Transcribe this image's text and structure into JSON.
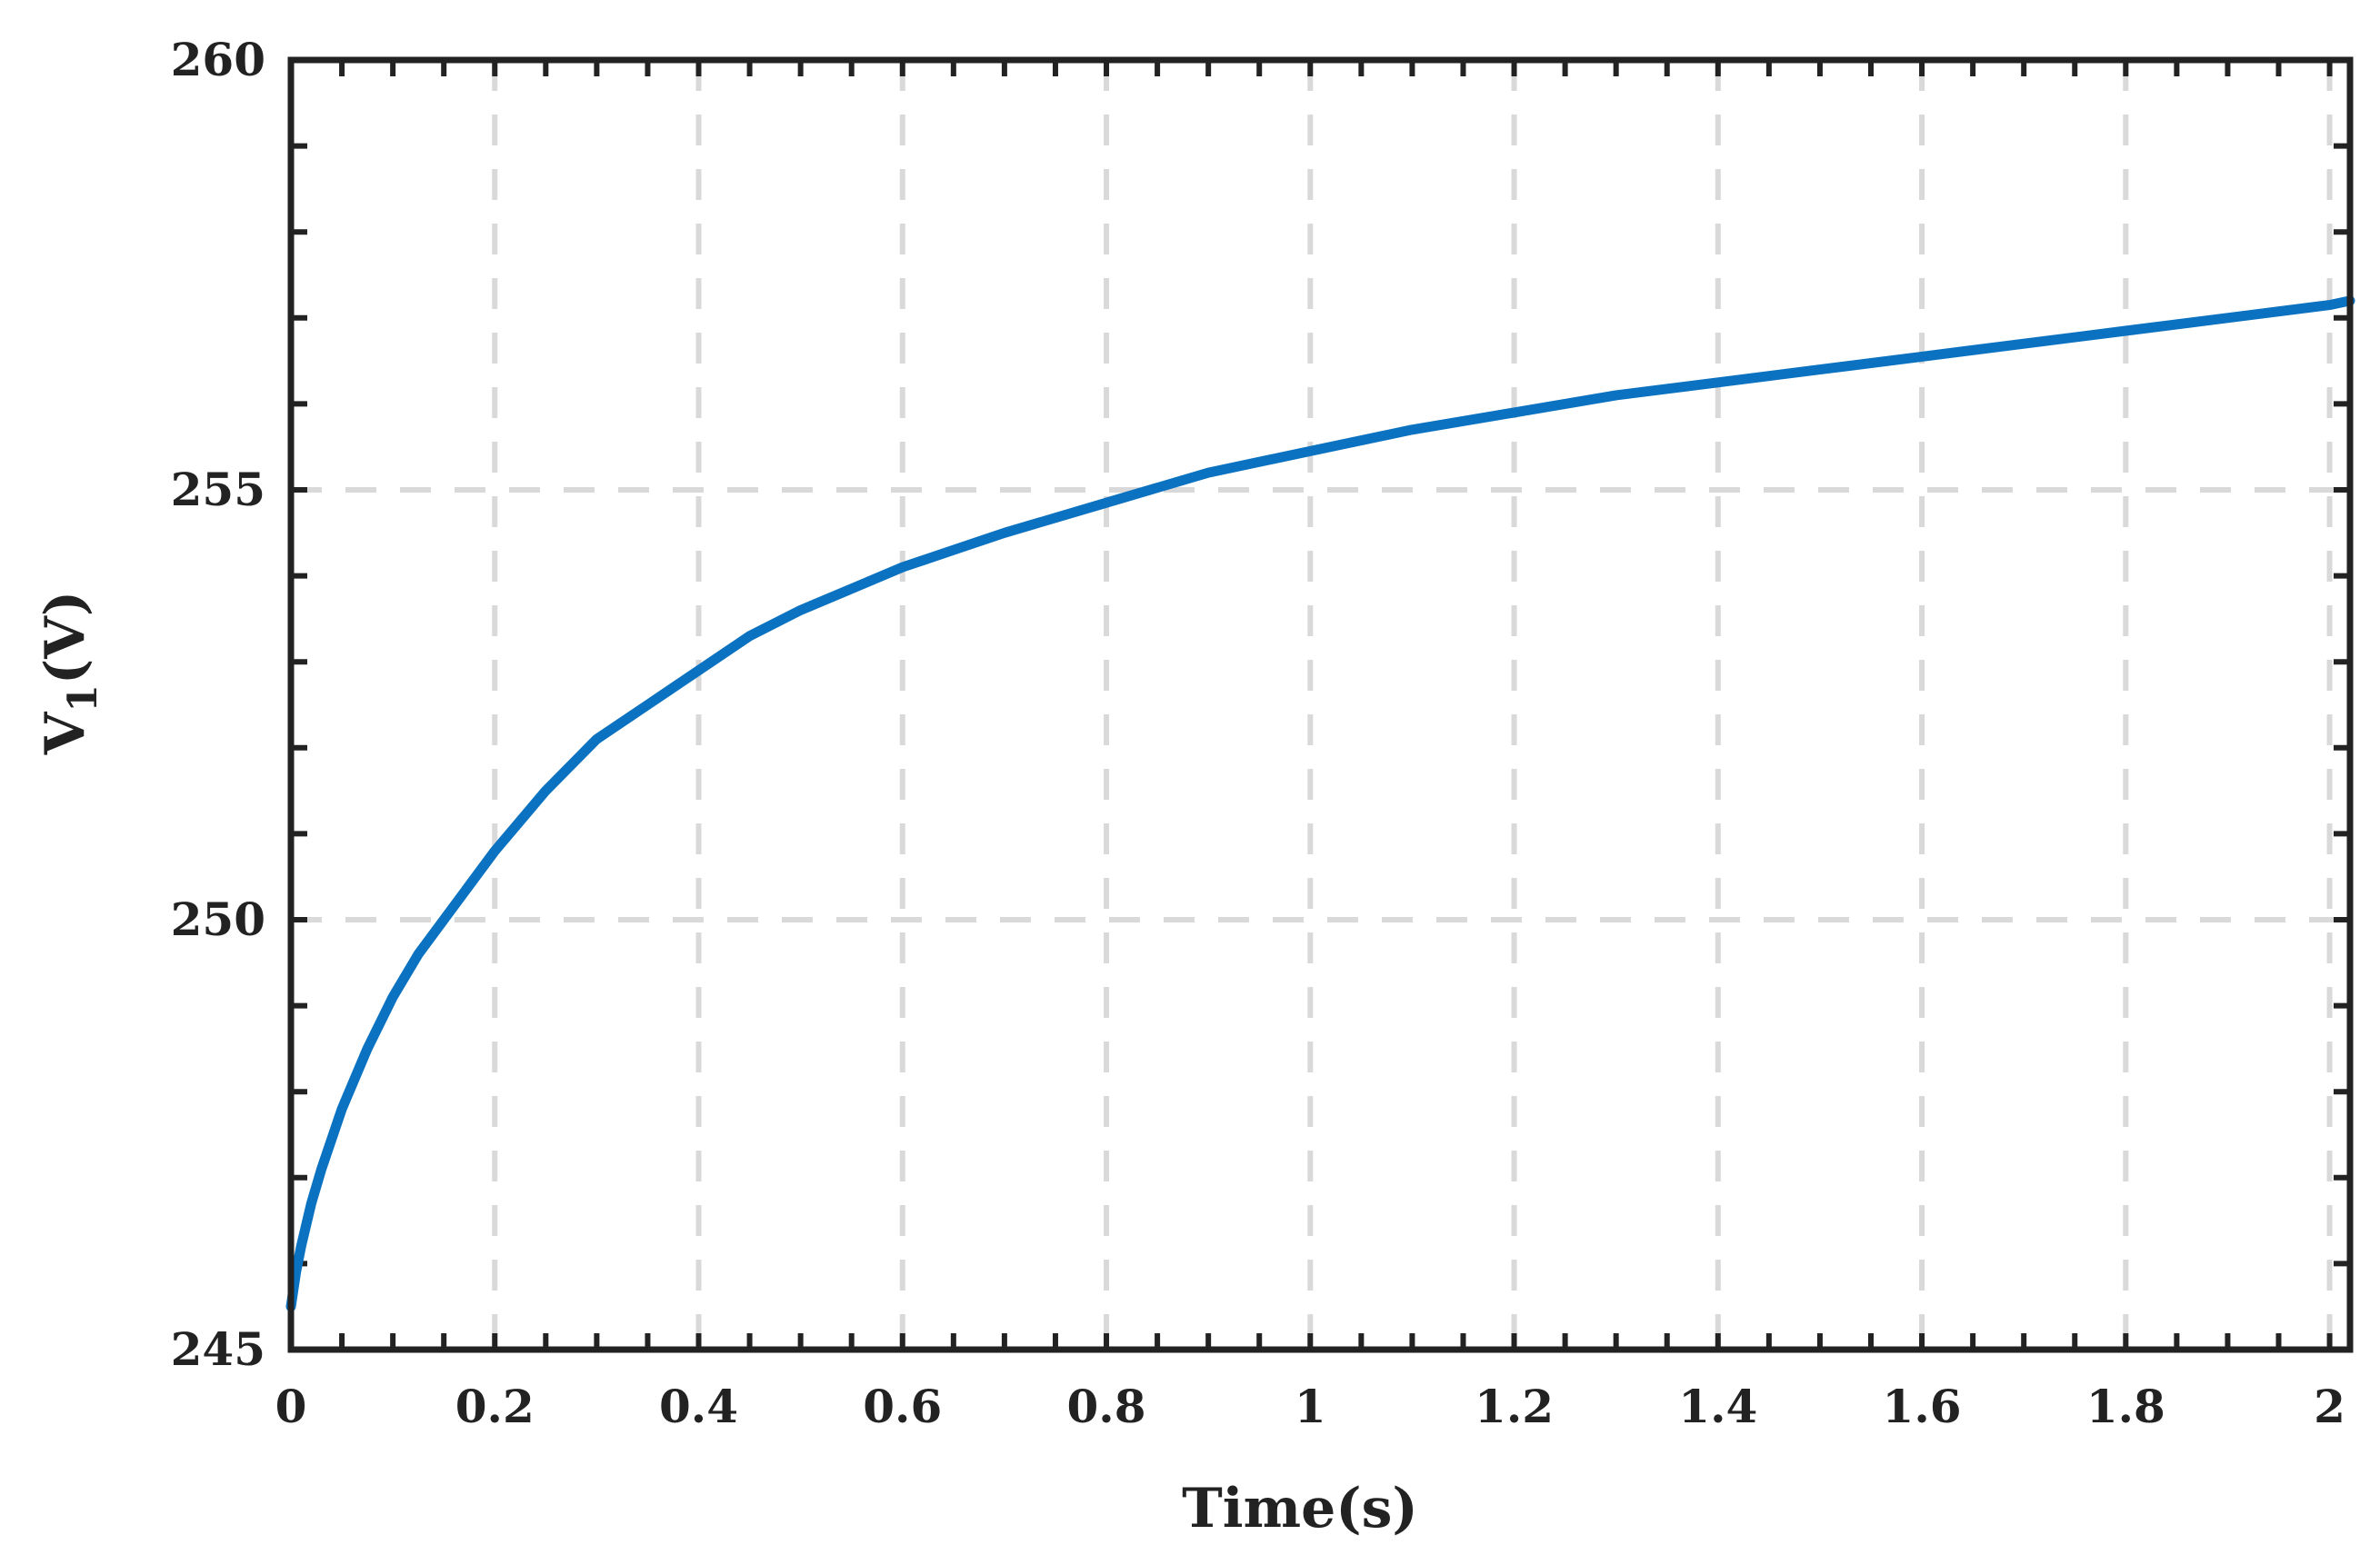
{
  "chart_data": {
    "type": "line",
    "title": "",
    "xlabel": "Time(s)",
    "ylabel": "V",
    "ylabel_sub": "1",
    "ylabel_unit": "(V)",
    "xlim": [
      0,
      2.02
    ],
    "ylim": [
      245,
      260
    ],
    "grid": true,
    "xticks": [
      0,
      0.2,
      0.4,
      0.6,
      0.8,
      1,
      1.2,
      1.4,
      1.6,
      1.8,
      2
    ],
    "xtick_labels": [
      "0",
      "0.2",
      "0.4",
      "0.6",
      "0.8",
      "1",
      "1.2",
      "1.4",
      "1.6",
      "1.8",
      "2"
    ],
    "yticks": [
      245,
      250,
      255,
      260
    ],
    "ytick_labels": [
      "245",
      "250",
      "255",
      "260"
    ],
    "x_minor_step": 0.05,
    "y_minor_step": 1,
    "colors": {
      "series": "#0a72c0",
      "axes": "#222222",
      "grid": "#d9d9d9"
    },
    "series": [
      {
        "x": [
          0,
          0.005,
          0.01,
          0.02,
          0.03,
          0.05,
          0.075,
          0.1,
          0.125,
          0.15,
          0.2,
          0.25,
          0.3,
          0.35,
          0.4,
          0.45,
          0.5,
          0.55,
          0.6,
          0.65,
          0.7,
          0.8,
          0.9,
          1.0,
          1.1,
          1.2,
          1.3,
          1.4,
          1.5,
          1.6,
          1.7,
          1.8,
          1.9,
          2.0,
          2.02
        ],
        "values": [
          245.5,
          245.9,
          246.2,
          246.7,
          247.1,
          247.8,
          248.5,
          249.1,
          249.6,
          250.0,
          250.8,
          251.5,
          252.1,
          252.5,
          252.9,
          253.3,
          253.6,
          253.85,
          254.1,
          254.3,
          254.5,
          254.85,
          255.2,
          255.45,
          255.7,
          255.9,
          256.1,
          256.25,
          256.4,
          256.55,
          256.7,
          256.85,
          257.0,
          257.15,
          257.2
        ]
      }
    ]
  }
}
